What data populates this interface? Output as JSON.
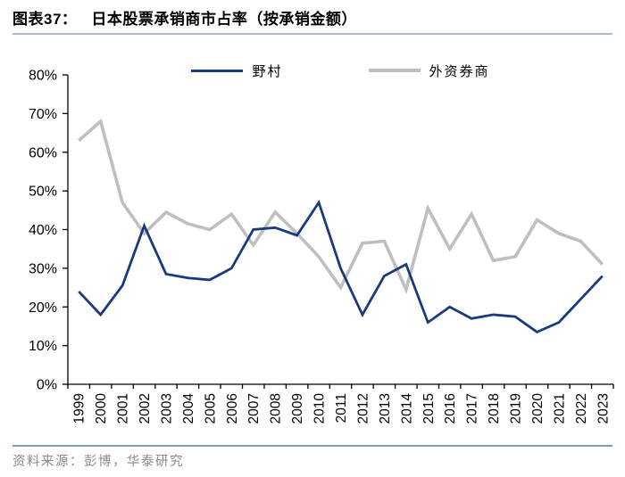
{
  "header": {
    "figure_label": "图表37：",
    "title": "日本股票承销商市占率（按承销金额）"
  },
  "legend": [
    {
      "key": "nomura",
      "label": "野村",
      "color": "#1a3a7e"
    },
    {
      "key": "foreign",
      "label": "外资券商",
      "color": "#bfbfbf"
    }
  ],
  "chart_data": {
    "type": "line",
    "title": "日本股票承销商市占率（按承销金额）",
    "x": [
      "1999",
      "2000",
      "2001",
      "2002",
      "2003",
      "2004",
      "2005",
      "2006",
      "2007",
      "2008",
      "2009",
      "2010",
      "2011",
      "2012",
      "2013",
      "2014",
      "2015",
      "2016",
      "2017",
      "2018",
      "2019",
      "2020",
      "2021",
      "2022",
      "2023"
    ],
    "series": [
      {
        "key": "nomura",
        "name": "野村",
        "color": "#1a3a7e",
        "values": [
          24,
          18,
          25.5,
          41,
          28.5,
          27.5,
          27,
          30,
          40,
          40.5,
          38.5,
          47,
          30,
          18,
          28,
          31,
          16,
          20,
          17,
          18,
          17.5,
          13.5,
          16,
          22,
          28
        ]
      },
      {
        "key": "foreign",
        "name": "外资券商",
        "color": "#bfbfbf",
        "values": [
          63,
          68,
          47,
          39,
          44.5,
          41.5,
          40,
          44,
          36,
          44.5,
          39,
          33,
          25,
          36.5,
          37,
          24.5,
          45.5,
          35,
          44,
          32,
          33,
          42.5,
          39,
          37,
          31
        ]
      }
    ],
    "xlabel": "",
    "ylabel": "",
    "ylim": [
      0,
      80
    ],
    "ytick_labels": [
      "0%",
      "10%",
      "20%",
      "30%",
      "40%",
      "50%",
      "60%",
      "70%",
      "80%"
    ],
    "grid": false,
    "legend_position": "top"
  },
  "colors": {
    "title_rule": "#a5bcd4",
    "footer_rule": "#7d9abf",
    "axis": "#000000"
  },
  "footer": {
    "source": "资料来源：彭博，华泰研究"
  }
}
